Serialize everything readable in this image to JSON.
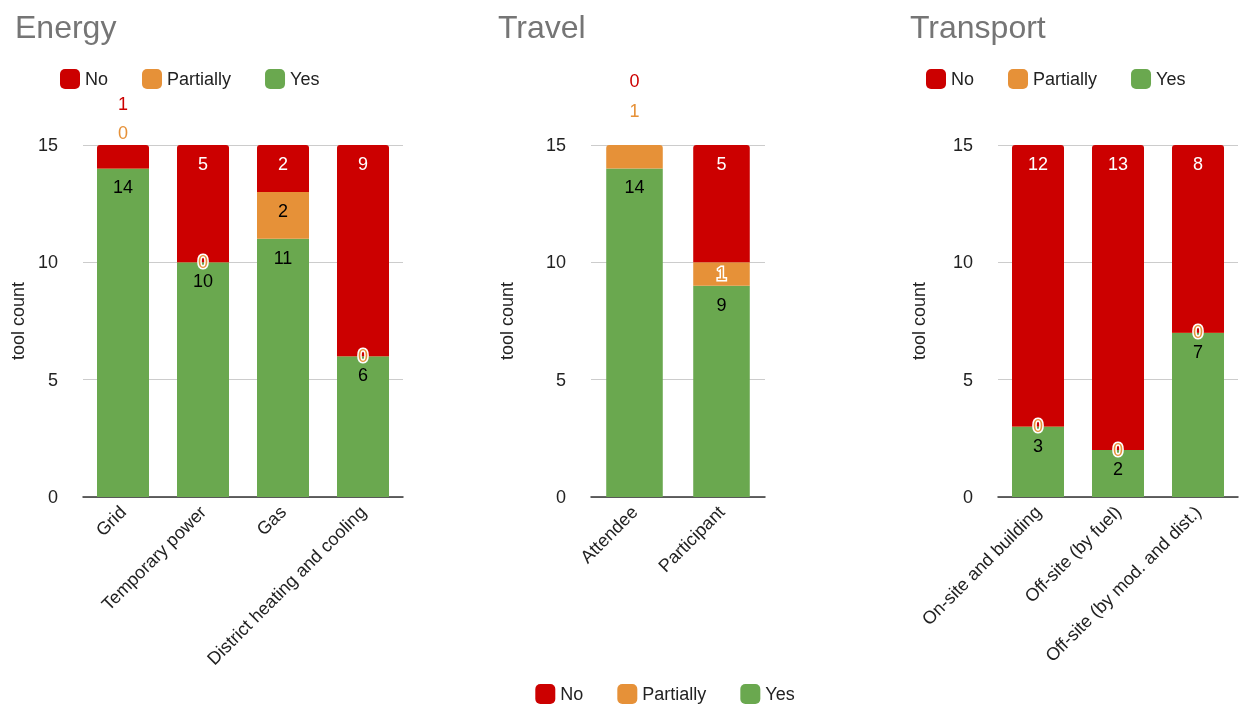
{
  "chart_data": [
    {
      "type": "bar",
      "title": "Energy",
      "ylabel": "tool count",
      "categories": [
        "Grid",
        "Temporary power",
        "Gas",
        "District heating and cooling"
      ],
      "series": [
        {
          "name": "Yes",
          "color": "#6aa84f",
          "values": [
            14,
            10,
            11,
            6
          ]
        },
        {
          "name": "Partially",
          "color": "#e69138",
          "values": [
            0,
            0,
            2,
            0
          ]
        },
        {
          "name": "No",
          "color": "#cc0000",
          "values": [
            1,
            5,
            2,
            9
          ]
        }
      ],
      "stacked": true,
      "ylim": [
        0,
        15
      ],
      "yticks": [
        0,
        5,
        10,
        15
      ],
      "grid": "y",
      "legend": "top left",
      "data_labels": true
    },
    {
      "type": "bar",
      "title": "Travel",
      "ylabel": "tool count",
      "categories": [
        "Attendee",
        "Participant"
      ],
      "series": [
        {
          "name": "Yes",
          "color": "#6aa84f",
          "values": [
            14,
            9
          ]
        },
        {
          "name": "Partially",
          "color": "#e69138",
          "values": [
            1,
            1
          ]
        },
        {
          "name": "No",
          "color": "#cc0000",
          "values": [
            0,
            5
          ]
        }
      ],
      "stacked": true,
      "ylim": [
        0,
        15
      ],
      "yticks": [
        0,
        5,
        10,
        15
      ],
      "grid": "y",
      "legend": "bottom",
      "data_labels": true
    },
    {
      "type": "bar",
      "title": "Transport",
      "ylabel": "tool count",
      "categories": [
        "On-site and building",
        "Off-site (by fuel)",
        "Off-site (by mod. and dist.)"
      ],
      "series": [
        {
          "name": "Yes",
          "color": "#6aa84f",
          "values": [
            3,
            2,
            7
          ]
        },
        {
          "name": "Partially",
          "color": "#e69138",
          "values": [
            0,
            0,
            0
          ]
        },
        {
          "name": "No",
          "color": "#cc0000",
          "values": [
            12,
            13,
            8
          ]
        }
      ],
      "stacked": true,
      "ylim": [
        0,
        15
      ],
      "yticks": [
        0,
        5,
        10,
        15
      ],
      "grid": "y",
      "legend": "top left",
      "data_labels": true
    }
  ]
}
